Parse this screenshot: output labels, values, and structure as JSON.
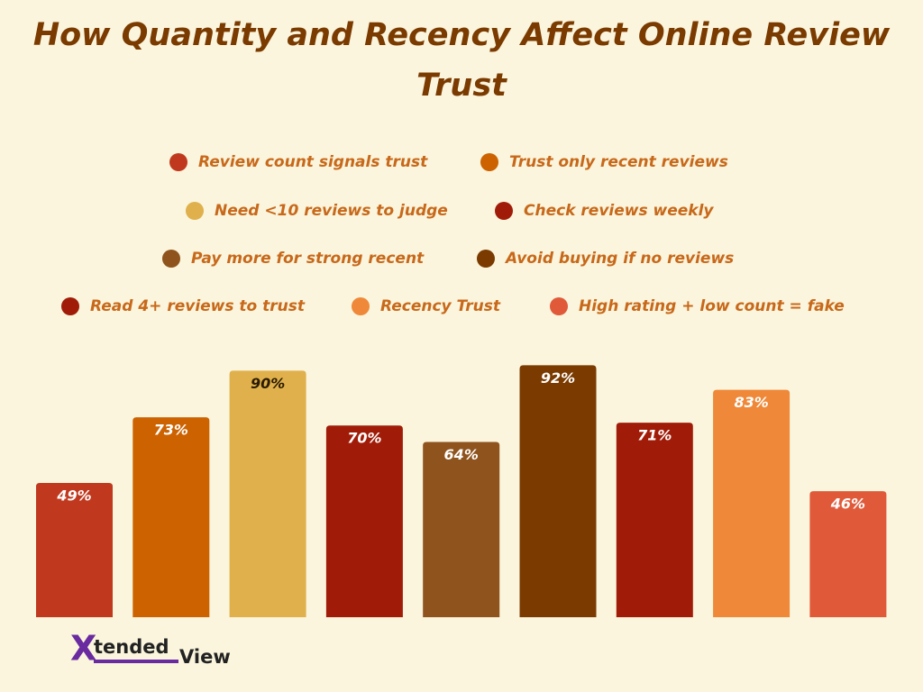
{
  "chart_data": {
    "type": "bar",
    "title": "How Quantity and Recency Affect Online Review Trust",
    "categories": [
      "Review count signals trust",
      "Trust only recent reviews",
      "Need <10 reviews to judge",
      "Check reviews weekly",
      "Pay more for strong recent",
      "Avoid buying if no reviews",
      "Read 4+ reviews to trust",
      "Recency Trust",
      "High rating + low count = fake"
    ],
    "values": [
      49,
      73,
      90,
      70,
      64,
      92,
      71,
      83,
      46
    ],
    "value_labels": [
      "49%",
      "73%",
      "90%",
      "70%",
      "64%",
      "92%",
      "71%",
      "83%",
      "46%"
    ],
    "colors": [
      "#c0391e",
      "#cc6200",
      "#e0b04c",
      "#a01c08",
      "#8f531d",
      "#7a3a00",
      "#a01c08",
      "#ef8838",
      "#e05a3a"
    ]
  },
  "logo": {
    "mark": "X",
    "part1": "tended",
    "part2": "View"
  }
}
